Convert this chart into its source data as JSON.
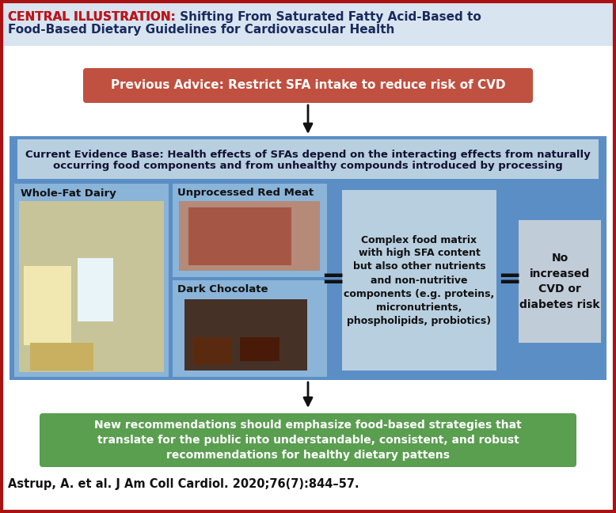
{
  "title_prefix": "CENTRAL ILLUSTRATION:",
  "title_line1_rest": " Shifting From Saturated Fatty Acid-Based to",
  "title_line2": "Food-Based Dietary Guidelines for Cardiovascular Health",
  "title_prefix_color": "#cc1111",
  "title_main_color": "#1a2a5e",
  "title_bg_color": "#d8e4f0",
  "bg_color": "#ffffff",
  "red_box_text": "Previous Advice: Restrict SFA intake to reduce risk of CVD",
  "red_box_bg": "#c05040",
  "red_box_text_color": "#ffffff",
  "blue_outer_bg": "#5b8ec4",
  "evidence_box_bg": "#b8cfe0",
  "evidence_text_line1": "Current Evidence Base: Health effects of SFAs depend on the interacting effects from naturally",
  "evidence_text_line2": "occurring food components and from unhealthy compounds introduced by processing",
  "dairy_label": "Whole-Fat Dairy",
  "meat_label": "Unprocessed Red Meat",
  "choc_label": "Dark Chocolate",
  "food_panel_bg": "#7aaad0",
  "dairy_box_bg": "#8ab4d8",
  "meat_box_bg": "#8ab4d8",
  "choc_box_bg": "#8ab4d8",
  "complex_box_bg": "#b8cfe0",
  "complex_text": "Complex food matrix\nwith high SFA content\nbut also other nutrients\nand non-nutritive\ncomponents (e.g. proteins,\nmicronutrients,\nphospholipids, probiotics)",
  "result_box_bg": "#c0ccd8",
  "result_text": "No\nincreased\nCVD or\ndiabetes risk",
  "green_box_bg": "#5a9e50",
  "green_box_text": "New recommendations should emphasize food-based strategies that\ntranslate for the public into understandable, consistent, and robust\nrecommendations for healthy dietary pattens",
  "green_box_text_color": "#ffffff",
  "citation": "Astrup, A. et al. J Am Coll Cardiol. 2020;76(7):844–57.",
  "arrow_color": "#111111",
  "outer_border_color": "#aa1111"
}
